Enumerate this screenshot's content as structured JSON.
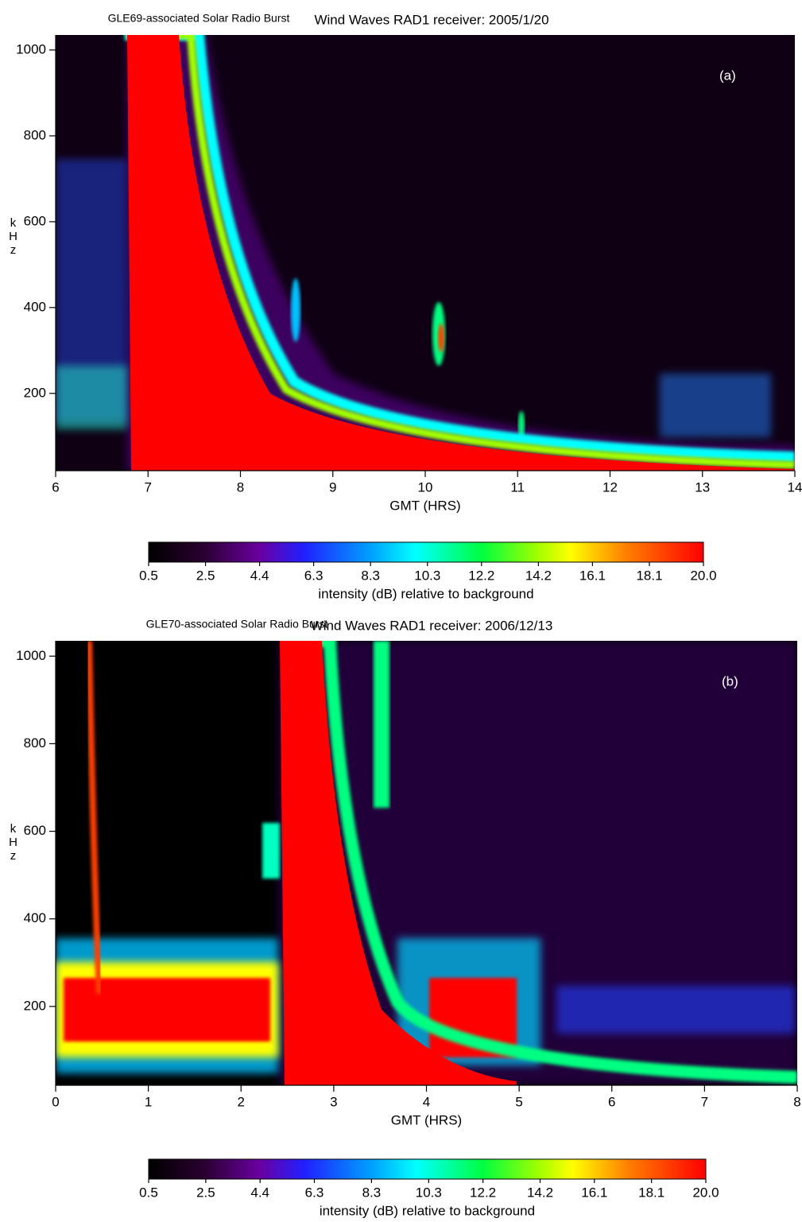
{
  "chart_data": [
    {
      "type": "spectrogram",
      "title": "Wind Waves RAD1 receiver: 2005/1/20",
      "annotation": "GLE69-associated Solar Radio Burst",
      "panel_label": "(a)",
      "x_label": "GMT (HRS)",
      "y_label": "kHz",
      "xlim": [
        6,
        14
      ],
      "xticks": [
        6,
        7,
        8,
        9,
        10,
        11,
        12,
        13,
        14
      ],
      "ylim": [
        20,
        1035
      ],
      "yticks": [
        200,
        400,
        600,
        800,
        1000
      ],
      "colorbar": {
        "label": "intensity (dB) relative to background",
        "lim": [
          0.5,
          20
        ],
        "ticks": [
          0.5,
          2.5,
          4.4,
          6.3,
          8.3,
          10.3,
          12.2,
          14.2,
          16.1,
          18.1,
          {
            "value": 20,
            "label": "20.0"
          }
        ]
      }
    },
    {
      "type": "spectrogram",
      "title": "Wind Waves RAD1 receiver: 2006/12/13",
      "annotation": "GLE70-associated Solar Radio Burst",
      "panel_label": "(b)",
      "x_label": "GMT (HRS)",
      "y_label": "kHz",
      "xlim": [
        0,
        8
      ],
      "xticks": [
        0,
        1,
        2,
        3,
        4,
        5,
        6,
        7,
        8
      ],
      "ylim": [
        20,
        1035
      ],
      "yticks": [
        200,
        400,
        600,
        800,
        1000
      ],
      "colorbar": {
        "label": "intensity (dB) relative to background",
        "lim": [
          0.5,
          20
        ],
        "ticks": [
          0.5,
          2.5,
          4.4,
          6.3,
          8.3,
          10.3,
          12.2,
          14.2,
          16.1,
          18.1,
          {
            "value": 20,
            "label": "20.0"
          }
        ]
      }
    }
  ]
}
